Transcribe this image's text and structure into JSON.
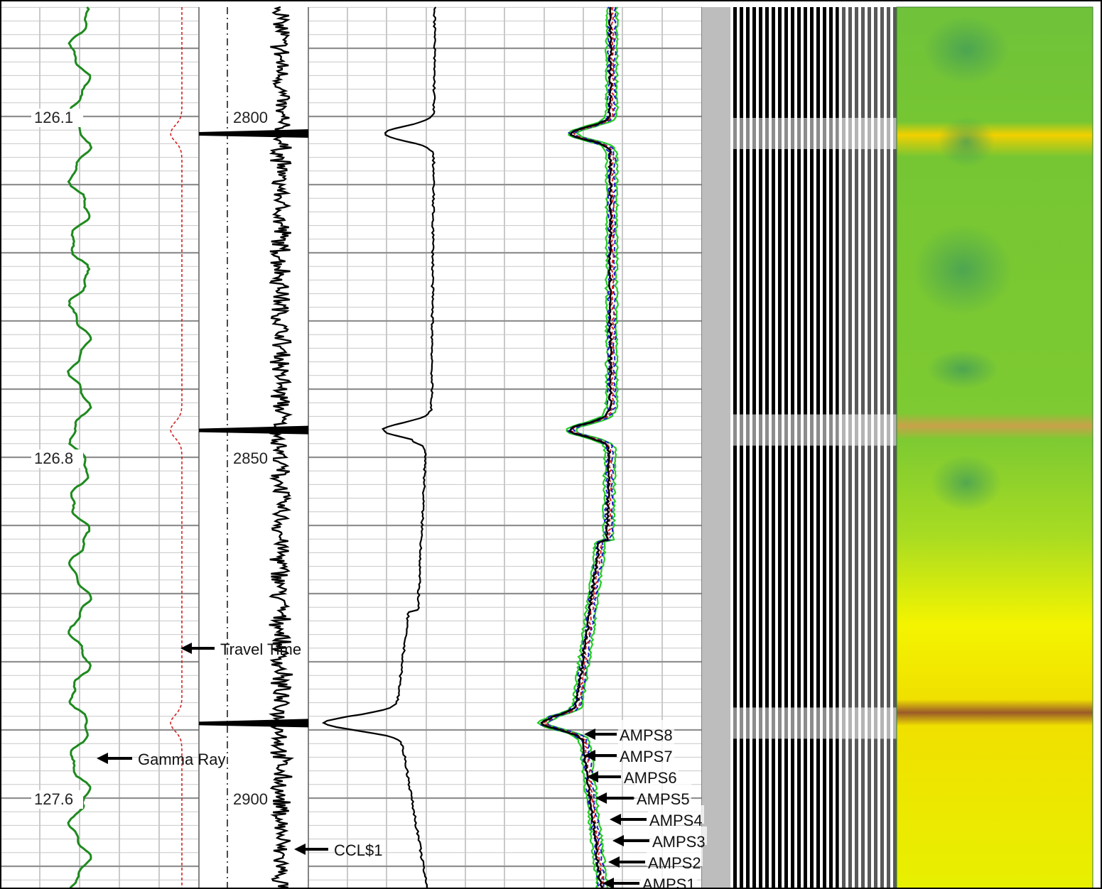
{
  "chart_data": {
    "type": "line",
    "tracks": [
      {
        "name": "left",
        "depth_track": "Gamma Ray / Travel Time"
      },
      {
        "name": "ccl",
        "depth_track": "CCL$1"
      },
      {
        "name": "amplitude"
      },
      {
        "name": "vdl"
      },
      {
        "name": "map"
      }
    ],
    "depth_labels": [
      "2800",
      "2850",
      "2900"
    ],
    "time_labels": [
      "126.1",
      "126.8",
      "127.6"
    ],
    "curve_labels": {
      "gamma_ray": "Gamma Ray",
      "travel_time": "Travel Time",
      "ccl": "CCL$1",
      "amps": [
        "AMPS8",
        "AMPS7",
        "AMPS6",
        "AMPS5",
        "AMPS4",
        "AMPS3",
        "AMPS2",
        "AMPS1"
      ]
    },
    "collar_depths": [
      2802.5,
      2846,
      2889
    ],
    "depth_range": [
      2784,
      2917
    ],
    "grid": true,
    "colors": {
      "gamma_ray": "#1e8a1e",
      "travel_time": "#d42020",
      "ccl": "#000000",
      "amp_black": "#000000",
      "amp_red": "#d42020",
      "amp_blue": "#1a1acc",
      "amp_green": "#22cc22",
      "map_green": "#7fcf33",
      "map_yellow": "#f2f200",
      "map_brown": "#9a5a28"
    }
  }
}
